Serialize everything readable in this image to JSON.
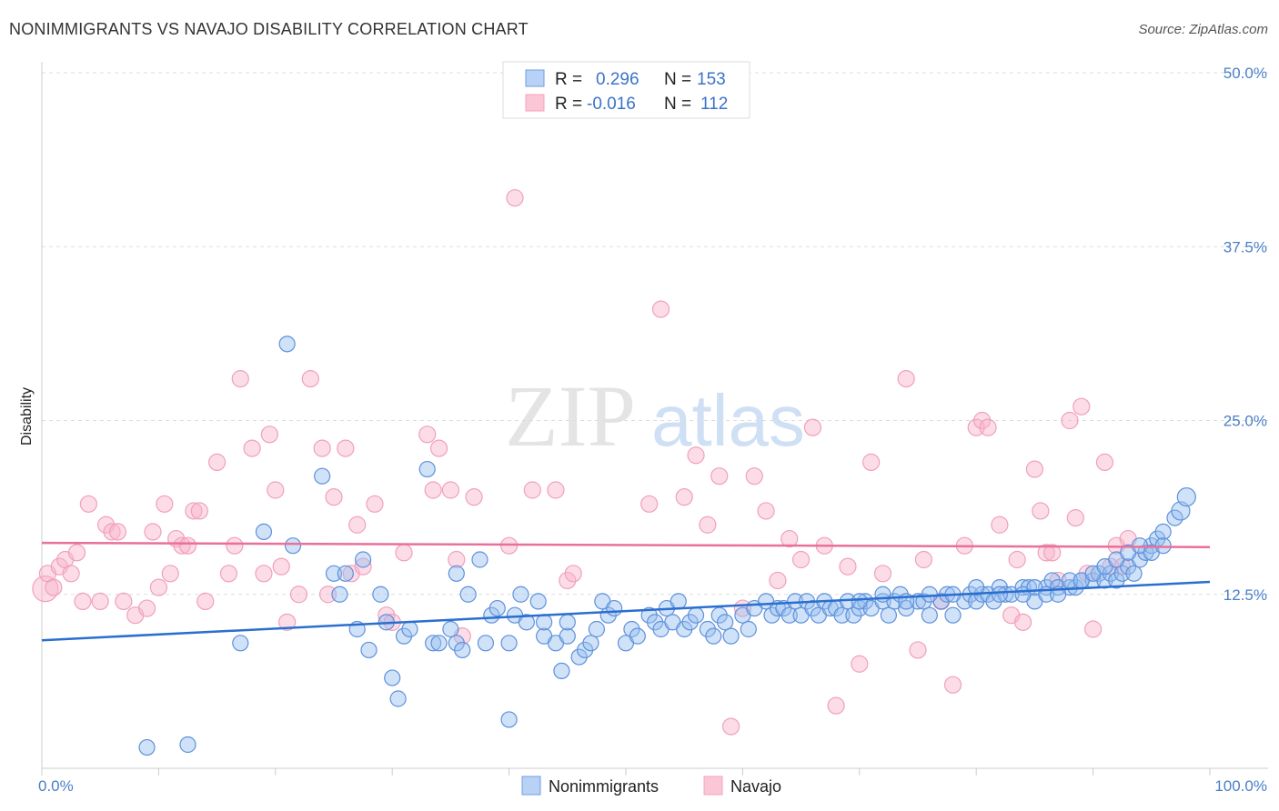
{
  "title": "NONIMMIGRANTS VS NAVAJO DISABILITY CORRELATION CHART",
  "source": "Source: ZipAtlas.com",
  "watermark": {
    "zip": "ZIP",
    "atlas": "atlas"
  },
  "chart_data": {
    "type": "scatter",
    "ylabel": "Disability",
    "xlim": [
      0,
      100
    ],
    "ylim": [
      0,
      50
    ],
    "y_ticks": [
      "12.5%",
      "25.0%",
      "37.5%",
      "50.0%"
    ],
    "y_tick_values": [
      12.5,
      25.0,
      37.5,
      50.0
    ],
    "x_tick_labels": [
      "0.0%",
      "100.0%"
    ],
    "grid": "horizontal dashed",
    "colors": {
      "nonimmigrants": "#6d9ee6",
      "navajo": "#f4a3bd",
      "nonimmigrants_line": "#2a6fcf",
      "navajo_line": "#e8709a"
    },
    "legend": {
      "rows": [
        {
          "r_label": "R =",
          "r_value": "0.296",
          "n_label": "N =",
          "n_value": "153"
        },
        {
          "r_label": "R =",
          "r_value": "-0.016",
          "n_label": "N =",
          "n_value": "112"
        }
      ]
    },
    "bottom_legend": [
      "Nonimmigrants",
      "Navajo"
    ],
    "series": [
      {
        "name": "Nonimmigrants",
        "trend": {
          "x": [
            0,
            100
          ],
          "y": [
            9.2,
            13.4
          ]
        },
        "points": [
          [
            9,
            1.5
          ],
          [
            12.5,
            1.7
          ],
          [
            17,
            9
          ],
          [
            19,
            17
          ],
          [
            21,
            30.5
          ],
          [
            21.5,
            16
          ],
          [
            24,
            21
          ],
          [
            25,
            14
          ],
          [
            25.5,
            12.5
          ],
          [
            26,
            14
          ],
          [
            27,
            10
          ],
          [
            27.5,
            15
          ],
          [
            28,
            8.5
          ],
          [
            29,
            12.5
          ],
          [
            29.5,
            10.5
          ],
          [
            30,
            6.5
          ],
          [
            30.5,
            5
          ],
          [
            31,
            9.5
          ],
          [
            31.5,
            10
          ],
          [
            33,
            21.5
          ],
          [
            33.5,
            9
          ],
          [
            34,
            9
          ],
          [
            35,
            10
          ],
          [
            35.5,
            9
          ],
          [
            35.5,
            14
          ],
          [
            36,
            8.5
          ],
          [
            36.5,
            12.5
          ],
          [
            37.5,
            15
          ],
          [
            38,
            9
          ],
          [
            38.5,
            11
          ],
          [
            39,
            11.5
          ],
          [
            40,
            9
          ],
          [
            40,
            3.5
          ],
          [
            40.5,
            11
          ],
          [
            41,
            12.5
          ],
          [
            41.5,
            10.5
          ],
          [
            42.5,
            12
          ],
          [
            43,
            9.5
          ],
          [
            43,
            10.5
          ],
          [
            44,
            9
          ],
          [
            44.5,
            7
          ],
          [
            45,
            9.5
          ],
          [
            45,
            10.5
          ],
          [
            46,
            8
          ],
          [
            46.5,
            8.5
          ],
          [
            47,
            9
          ],
          [
            47.5,
            10
          ],
          [
            48,
            12
          ],
          [
            48.5,
            11
          ],
          [
            49,
            11.5
          ],
          [
            50,
            9
          ],
          [
            50.5,
            10
          ],
          [
            51,
            9.5
          ],
          [
            52,
            11
          ],
          [
            52.5,
            10.5
          ],
          [
            53,
            10
          ],
          [
            53.5,
            11.5
          ],
          [
            54,
            10.5
          ],
          [
            54.5,
            12
          ],
          [
            55,
            10
          ],
          [
            55.5,
            10.5
          ],
          [
            56,
            11
          ],
          [
            57,
            10
          ],
          [
            57.5,
            9.5
          ],
          [
            58,
            11
          ],
          [
            58.5,
            10.5
          ],
          [
            59,
            9.5
          ],
          [
            60,
            11
          ],
          [
            60.5,
            10
          ],
          [
            61,
            11.5
          ],
          [
            62,
            12
          ],
          [
            62.5,
            11
          ],
          [
            63,
            11.5
          ],
          [
            63.5,
            11.5
          ],
          [
            64,
            11
          ],
          [
            64.5,
            12
          ],
          [
            65,
            11
          ],
          [
            65.5,
            12
          ],
          [
            66,
            11.5
          ],
          [
            66.5,
            11
          ],
          [
            67,
            12
          ],
          [
            67.5,
            11.5
          ],
          [
            68,
            11.5
          ],
          [
            68.5,
            11
          ],
          [
            69,
            12
          ],
          [
            69.5,
            11
          ],
          [
            70,
            11.5
          ],
          [
            70.5,
            12
          ],
          [
            71,
            11.5
          ],
          [
            72,
            12
          ],
          [
            72.5,
            11
          ],
          [
            73,
            12
          ],
          [
            73.5,
            12.5
          ],
          [
            74,
            11.5
          ],
          [
            75,
            12
          ],
          [
            75.5,
            12
          ],
          [
            76,
            11
          ],
          [
            77,
            12
          ],
          [
            77.5,
            12.5
          ],
          [
            78,
            11
          ],
          [
            79,
            12
          ],
          [
            79.5,
            12.5
          ],
          [
            80,
            12
          ],
          [
            80.5,
            12.5
          ],
          [
            81,
            12.5
          ],
          [
            81.5,
            12
          ],
          [
            82,
            13
          ],
          [
            82.5,
            12.5
          ],
          [
            83,
            12.5
          ],
          [
            84,
            13
          ],
          [
            84.5,
            13
          ],
          [
            85,
            12
          ],
          [
            86,
            13
          ],
          [
            86.5,
            13.5
          ],
          [
            87,
            13
          ],
          [
            88,
            13
          ],
          [
            88.5,
            13
          ],
          [
            89,
            13.5
          ],
          [
            90,
            13.5
          ],
          [
            90.5,
            14
          ],
          [
            91,
            13.5
          ],
          [
            91.5,
            14
          ],
          [
            92,
            13.5
          ],
          [
            92.5,
            14
          ],
          [
            93,
            14.5
          ],
          [
            93.5,
            14
          ],
          [
            94,
            15
          ],
          [
            94.5,
            15.5
          ],
          [
            95,
            16
          ],
          [
            95.5,
            16.5
          ],
          [
            96,
            17
          ],
          [
            97,
            18
          ],
          [
            97.5,
            18.5
          ],
          [
            98,
            19.5
          ],
          [
            84,
            12.5
          ],
          [
            85,
            13
          ],
          [
            86,
            12.5
          ],
          [
            87,
            12.5
          ],
          [
            88,
            13.5
          ],
          [
            89,
            13.5
          ],
          [
            90,
            14
          ],
          [
            91,
            14.5
          ],
          [
            92,
            15
          ],
          [
            93,
            15.5
          ],
          [
            94,
            16
          ],
          [
            95,
            15.5
          ],
          [
            96,
            16
          ],
          [
            70,
            12
          ],
          [
            72,
            12.5
          ],
          [
            74,
            12
          ],
          [
            76,
            12.5
          ],
          [
            78,
            12.5
          ],
          [
            80,
            13
          ],
          [
            82,
            12.5
          ]
        ]
      },
      {
        "name": "Navajo",
        "trend": {
          "x": [
            0,
            100
          ],
          "y": [
            16.2,
            15.9
          ]
        },
        "points": [
          [
            0.3,
            12.9
          ],
          [
            0.5,
            14
          ],
          [
            1,
            13
          ],
          [
            1.5,
            14.5
          ],
          [
            2,
            15
          ],
          [
            2.5,
            14
          ],
          [
            3,
            15.5
          ],
          [
            3.5,
            12
          ],
          [
            4,
            19
          ],
          [
            5,
            12
          ],
          [
            5.5,
            17.5
          ],
          [
            6,
            17
          ],
          [
            6.5,
            17
          ],
          [
            7,
            12
          ],
          [
            8,
            11
          ],
          [
            9,
            11.5
          ],
          [
            9.5,
            17
          ],
          [
            10,
            13
          ],
          [
            10.5,
            19
          ],
          [
            11,
            14
          ],
          [
            11.5,
            16.5
          ],
          [
            12,
            16
          ],
          [
            12.5,
            16
          ],
          [
            13,
            18.5
          ],
          [
            13.5,
            18.5
          ],
          [
            14,
            12
          ],
          [
            15,
            22
          ],
          [
            16,
            14
          ],
          [
            16.5,
            16
          ],
          [
            17,
            28
          ],
          [
            18,
            23
          ],
          [
            19,
            14
          ],
          [
            19.5,
            24
          ],
          [
            20,
            20
          ],
          [
            20.5,
            14.5
          ],
          [
            21,
            10.5
          ],
          [
            22,
            12.5
          ],
          [
            23,
            28
          ],
          [
            24,
            23
          ],
          [
            24.5,
            12.5
          ],
          [
            25,
            19.5
          ],
          [
            26,
            23
          ],
          [
            26.5,
            14
          ],
          [
            27,
            17.5
          ],
          [
            27.5,
            14.5
          ],
          [
            28.5,
            19
          ],
          [
            29.5,
            11
          ],
          [
            30,
            10.5
          ],
          [
            31,
            15.5
          ],
          [
            33,
            24
          ],
          [
            33.5,
            20
          ],
          [
            34,
            23
          ],
          [
            35,
            20
          ],
          [
            35.5,
            15
          ],
          [
            36,
            9.5
          ],
          [
            37,
            19.5
          ],
          [
            40,
            16
          ],
          [
            40.5,
            41
          ],
          [
            42,
            20
          ],
          [
            44,
            20
          ],
          [
            45,
            13.5
          ],
          [
            45.5,
            14
          ],
          [
            52,
            19
          ],
          [
            53,
            33
          ],
          [
            55,
            19.5
          ],
          [
            56,
            22.5
          ],
          [
            57,
            17.5
          ],
          [
            58,
            21
          ],
          [
            59,
            3
          ],
          [
            60,
            11.5
          ],
          [
            61,
            21
          ],
          [
            62,
            18.5
          ],
          [
            63,
            13.5
          ],
          [
            64,
            16.5
          ],
          [
            65,
            15
          ],
          [
            66,
            24.5
          ],
          [
            67,
            16
          ],
          [
            68,
            4.5
          ],
          [
            69,
            14.5
          ],
          [
            70,
            7.5
          ],
          [
            71,
            22
          ],
          [
            72,
            14
          ],
          [
            74,
            28
          ],
          [
            75,
            8.5
          ],
          [
            75.5,
            15
          ],
          [
            77,
            12
          ],
          [
            78,
            6
          ],
          [
            79,
            16
          ],
          [
            80,
            24.5
          ],
          [
            80.5,
            25
          ],
          [
            81,
            24.5
          ],
          [
            82,
            17.5
          ],
          [
            83,
            11
          ],
          [
            83.5,
            15
          ],
          [
            84,
            10.5
          ],
          [
            85,
            21.5
          ],
          [
            85.5,
            18.5
          ],
          [
            86,
            15.5
          ],
          [
            86.5,
            15.5
          ],
          [
            87,
            13.5
          ],
          [
            88,
            25
          ],
          [
            88.5,
            18
          ],
          [
            89,
            26
          ],
          [
            89.5,
            14
          ],
          [
            90,
            10
          ],
          [
            91,
            22
          ],
          [
            91.5,
            14.5
          ],
          [
            92,
            16
          ],
          [
            92.5,
            14.5
          ],
          [
            93,
            16.5
          ]
        ]
      }
    ]
  }
}
